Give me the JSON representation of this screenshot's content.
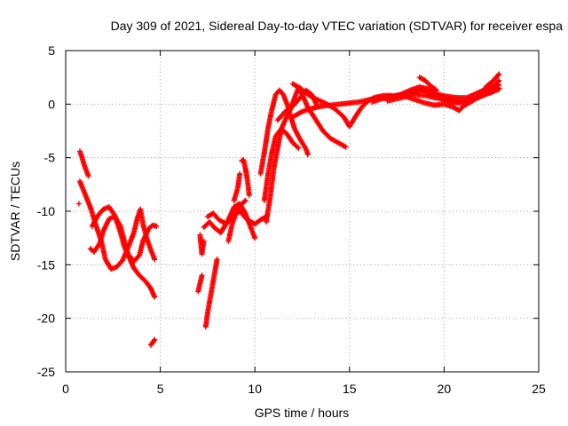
{
  "chart_data": {
    "type": "scatter",
    "title": "Day 309 of 2021, Sidereal Day-to-day VTEC variation (SDTVAR) for receiver espa",
    "xlabel": "GPS time / hours",
    "ylabel": "SDTVAR / TECUs",
    "xlim": [
      0,
      25
    ],
    "ylim": [
      -25,
      5
    ],
    "xticks": [
      "0",
      "5",
      "10",
      "15",
      "20",
      "25"
    ],
    "yticks": [
      "5",
      "0",
      "-5",
      "-10",
      "-15",
      "-20",
      "-25"
    ],
    "grid": true,
    "marker": "+",
    "series": [
      {
        "name": "SDTVAR",
        "color": "#ff0000",
        "tracks": [
          [
            [
              0.75,
              -4.4
            ],
            [
              0.85,
              -4.9
            ],
            [
              1.0,
              -5.8
            ],
            [
              1.2,
              -6.7
            ]
          ],
          [
            [
              0.7,
              -9.3
            ]
          ],
          [
            [
              0.75,
              -7.2
            ],
            [
              1.0,
              -8.3
            ],
            [
              1.3,
              -9.6
            ],
            [
              1.6,
              -11.3
            ],
            [
              1.9,
              -12.9
            ],
            [
              2.1,
              -14.5
            ],
            [
              2.4,
              -15.4
            ],
            [
              2.7,
              -15.2
            ],
            [
              3.0,
              -14.6
            ],
            [
              3.3,
              -13.4
            ],
            [
              3.6,
              -12.0
            ],
            [
              3.8,
              -10.6
            ],
            [
              3.95,
              -9.8
            ],
            [
              4.1,
              -11.3
            ],
            [
              4.3,
              -12.6
            ],
            [
              4.5,
              -13.6
            ],
            [
              4.7,
              -14.5
            ]
          ],
          [
            [
              1.3,
              -13.5
            ],
            [
              1.5,
              -13.8
            ],
            [
              1.8,
              -13.0
            ],
            [
              2.0,
              -11.8
            ],
            [
              2.3,
              -10.7
            ],
            [
              2.6,
              -10.5
            ],
            [
              2.9,
              -11.4
            ],
            [
              3.1,
              -12.8
            ],
            [
              3.3,
              -14.0
            ],
            [
              3.6,
              -14.7
            ],
            [
              3.9,
              -14.1
            ],
            [
              4.1,
              -12.7
            ],
            [
              4.4,
              -11.6
            ],
            [
              4.6,
              -11.3
            ],
            [
              4.8,
              -11.4
            ]
          ],
          [
            [
              1.4,
              -11.4
            ],
            [
              1.7,
              -10.4
            ],
            [
              2.0,
              -9.8
            ],
            [
              2.3,
              -9.6
            ],
            [
              2.6,
              -10.4
            ],
            [
              2.9,
              -12.0
            ],
            [
              3.1,
              -13.3
            ],
            [
              3.4,
              -14.5
            ],
            [
              3.6,
              -15.3
            ],
            [
              3.9,
              -16.0
            ],
            [
              4.2,
              -16.5
            ],
            [
              4.5,
              -17.2
            ],
            [
              4.7,
              -18.0
            ]
          ],
          [
            [
              4.5,
              -22.5
            ],
            [
              4.7,
              -22.0
            ]
          ],
          [
            [
              7.1,
              -12.2
            ],
            [
              7.2,
              -14.0
            ],
            [
              7.3,
              -12.8
            ]
          ],
          [
            [
              7.0,
              -17.5
            ],
            [
              7.2,
              -16.0
            ]
          ],
          [
            [
              7.4,
              -20.8
            ],
            [
              7.5,
              -19.5
            ],
            [
              7.7,
              -17.5
            ],
            [
              7.9,
              -15.5
            ],
            [
              8.0,
              -14.5
            ]
          ],
          [
            [
              7.3,
              -11.5
            ],
            [
              7.6,
              -11.0
            ],
            [
              7.9,
              -11.6
            ],
            [
              8.2,
              -12.0
            ],
            [
              8.6,
              -10.8
            ],
            [
              8.9,
              -9.6
            ],
            [
              9.2,
              -9.3
            ],
            [
              9.5,
              -10.2
            ],
            [
              9.8,
              -11.6
            ],
            [
              10.0,
              -12.5
            ]
          ],
          [
            [
              7.5,
              -10.5
            ],
            [
              7.8,
              -10.2
            ],
            [
              8.1,
              -10.8
            ],
            [
              8.5,
              -11.2
            ],
            [
              8.8,
              -10.5
            ],
            [
              9.2,
              -10.0
            ],
            [
              9.6,
              -10.8
            ],
            [
              10.0,
              -11.2
            ],
            [
              10.3,
              -10.8
            ],
            [
              10.6,
              -10.5
            ]
          ],
          [
            [
              8.6,
              -12.8
            ],
            [
              8.8,
              -11.2
            ],
            [
              9.1,
              -9.7
            ],
            [
              9.5,
              -9.0
            ]
          ],
          [
            [
              9.3,
              -5.3
            ],
            [
              9.4,
              -5.2
            ],
            [
              9.5,
              -6.0
            ],
            [
              9.6,
              -7.0
            ],
            [
              9.7,
              -8.5
            ]
          ],
          [
            [
              9.2,
              -6.5
            ],
            [
              9.1,
              -7.8
            ],
            [
              8.9,
              -9.0
            ]
          ],
          [
            [
              10.3,
              -6.5
            ],
            [
              10.5,
              -4.5
            ],
            [
              10.7,
              -2.2
            ],
            [
              10.9,
              -0.5
            ],
            [
              11.1,
              0.9
            ],
            [
              11.3,
              1.3
            ],
            [
              11.5,
              0.9
            ],
            [
              11.7,
              0.0
            ],
            [
              11.9,
              -1.2
            ],
            [
              12.1,
              -2.3
            ],
            [
              12.3,
              -3.0
            ],
            [
              12.5,
              -3.6
            ],
            [
              12.7,
              -4.2
            ],
            [
              12.8,
              -4.7
            ]
          ],
          [
            [
              10.5,
              -9.0
            ],
            [
              10.7,
              -6.5
            ],
            [
              10.9,
              -4.5
            ],
            [
              11.1,
              -3.0
            ],
            [
              11.4,
              -2.3
            ],
            [
              11.7,
              -2.8
            ],
            [
              12.0,
              -3.6
            ],
            [
              12.3,
              -4.1
            ]
          ],
          [
            [
              10.6,
              -11.0
            ],
            [
              10.8,
              -8.8
            ],
            [
              11.0,
              -6.0
            ],
            [
              11.2,
              -4.1
            ],
            [
              11.4,
              -2.3
            ],
            [
              11.7,
              -1.1
            ],
            [
              11.9,
              -0.4
            ],
            [
              12.1,
              0.6
            ],
            [
              12.3,
              1.5
            ],
            [
              12.5,
              0.9
            ],
            [
              12.8,
              -0.3
            ],
            [
              13.2,
              -1.4
            ],
            [
              13.6,
              -2.5
            ],
            [
              14.0,
              -3.2
            ],
            [
              14.4,
              -3.6
            ],
            [
              14.8,
              -4.0
            ]
          ],
          [
            [
              11.2,
              -1.5
            ],
            [
              11.6,
              -0.7
            ],
            [
              12.0,
              -0.2
            ],
            [
              12.4,
              0.6
            ],
            [
              12.7,
              1.3
            ],
            [
              13.0,
              0.9
            ],
            [
              13.3,
              -0.2
            ]
          ],
          [
            [
              12.0,
              1.9
            ],
            [
              12.4,
              1.5
            ],
            [
              12.8,
              0.9
            ],
            [
              13.2,
              0.5
            ],
            [
              13.7,
              0.1
            ],
            [
              14.2,
              -0.4
            ],
            [
              14.7,
              -1.2
            ],
            [
              15.0,
              -2.1
            ],
            [
              15.3,
              -1.2
            ],
            [
              15.6,
              -0.4
            ],
            [
              15.9,
              0.2
            ],
            [
              16.3,
              0.6
            ],
            [
              16.8,
              0.8
            ],
            [
              17.2,
              0.8
            ]
          ],
          [
            [
              12.0,
              -1.2
            ],
            [
              12.5,
              -0.7
            ],
            [
              13.0,
              -0.4
            ],
            [
              13.5,
              -0.2
            ],
            [
              14.0,
              -0.1
            ],
            [
              14.5,
              0.0
            ],
            [
              15.0,
              0.1
            ],
            [
              15.5,
              0.2
            ],
            [
              16.0,
              0.4
            ],
            [
              16.5,
              0.6
            ],
            [
              17.0,
              0.7
            ],
            [
              17.5,
              0.8
            ],
            [
              18.0,
              1.0
            ],
            [
              18.5,
              0.9
            ],
            [
              19.0,
              0.8
            ],
            [
              19.5,
              0.6
            ],
            [
              20.0,
              0.5
            ],
            [
              20.5,
              0.3
            ],
            [
              21.0,
              0.2
            ],
            [
              21.5,
              0.4
            ],
            [
              22.0,
              0.8
            ],
            [
              22.5,
              1.1
            ],
            [
              22.9,
              1.4
            ]
          ],
          [
            [
              16.2,
              0.2
            ],
            [
              16.7,
              0.5
            ],
            [
              17.2,
              0.7
            ],
            [
              17.7,
              0.9
            ],
            [
              18.2,
              1.3
            ],
            [
              18.7,
              1.6
            ],
            [
              19.2,
              1.4
            ],
            [
              19.7,
              0.9
            ],
            [
              20.2,
              0.7
            ],
            [
              20.7,
              0.6
            ],
            [
              21.2,
              0.6
            ],
            [
              21.7,
              1.0
            ],
            [
              22.2,
              1.4
            ],
            [
              22.7,
              1.8
            ],
            [
              22.9,
              2.2
            ]
          ],
          [
            [
              17.0,
              0.3
            ],
            [
              17.5,
              0.5
            ],
            [
              18.0,
              0.7
            ],
            [
              18.5,
              0.4
            ],
            [
              19.0,
              0.1
            ],
            [
              19.5,
              -0.1
            ],
            [
              20.0,
              0.0
            ],
            [
              20.5,
              -0.3
            ],
            [
              20.8,
              -0.6
            ],
            [
              21.0,
              -0.2
            ],
            [
              21.5,
              0.3
            ],
            [
              22.0,
              0.9
            ],
            [
              22.5,
              1.4
            ],
            [
              22.9,
              1.8
            ]
          ],
          [
            [
              18.3,
              1.0
            ],
            [
              18.8,
              1.3
            ],
            [
              19.3,
              1.0
            ],
            [
              19.8,
              0.5
            ],
            [
              20.3,
              0.2
            ],
            [
              20.8,
              0.1
            ],
            [
              21.3,
              0.3
            ],
            [
              21.8,
              0.6
            ],
            [
              22.3,
              1.0
            ],
            [
              22.9,
              1.5
            ]
          ],
          [
            [
              18.7,
              2.5
            ],
            [
              19.0,
              2.2
            ],
            [
              19.3,
              1.7
            ],
            [
              19.6,
              1.3
            ]
          ],
          [
            [
              22.2,
              1.6
            ],
            [
              22.6,
              2.2
            ],
            [
              22.9,
              2.8
            ]
          ]
        ]
      }
    ]
  }
}
